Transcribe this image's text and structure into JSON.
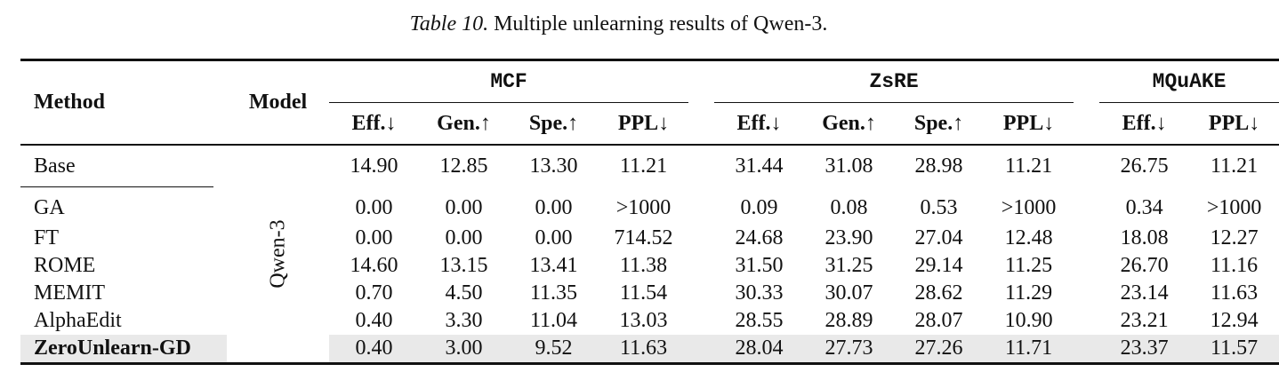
{
  "caption": {
    "label": "Table 10.",
    "text": "Multiple unlearning results of Qwen-3."
  },
  "headers": {
    "method": "Method",
    "model": "Model",
    "groups": [
      "MCF",
      "ZsRE",
      "MQuAKE"
    ],
    "metrics": [
      "Eff.↓",
      "Gen.↑",
      "Spe.↑",
      "PPL↓",
      "Eff.↓",
      "Gen.↑",
      "Spe.↑",
      "PPL↓",
      "Eff.↓",
      "PPL↓"
    ]
  },
  "model_name": "Qwen-3",
  "rows": [
    {
      "method": "Base",
      "values": [
        "14.90",
        "12.85",
        "13.30",
        "11.21",
        "31.44",
        "31.08",
        "28.98",
        "11.21",
        "26.75",
        "11.21"
      ]
    },
    {
      "method": "GA",
      "values": [
        "0.00",
        "0.00",
        "0.00",
        ">1000",
        "0.09",
        "0.08",
        "0.53",
        ">1000",
        "0.34",
        ">1000"
      ]
    },
    {
      "method": "FT",
      "values": [
        "0.00",
        "0.00",
        "0.00",
        "714.52",
        "24.68",
        "23.90",
        "27.04",
        "12.48",
        "18.08",
        "12.27"
      ]
    },
    {
      "method": "ROME",
      "values": [
        "14.60",
        "13.15",
        "13.41",
        "11.38",
        "31.50",
        "31.25",
        "29.14",
        "11.25",
        "26.70",
        "11.16"
      ]
    },
    {
      "method": "MEMIT",
      "values": [
        "0.70",
        "4.50",
        "11.35",
        "11.54",
        "30.33",
        "30.07",
        "28.62",
        "11.29",
        "23.14",
        "11.63"
      ]
    },
    {
      "method": "AlphaEdit",
      "values": [
        "0.40",
        "3.30",
        "11.04",
        "13.03",
        "28.55",
        "28.89",
        "28.07",
        "10.90",
        "23.21",
        "12.94"
      ]
    },
    {
      "method": "ZeroUnlearn-GD",
      "values": [
        "0.40",
        "3.00",
        "9.52",
        "11.63",
        "28.04",
        "27.73",
        "27.26",
        "11.71",
        "23.37",
        "11.57"
      ]
    }
  ]
}
